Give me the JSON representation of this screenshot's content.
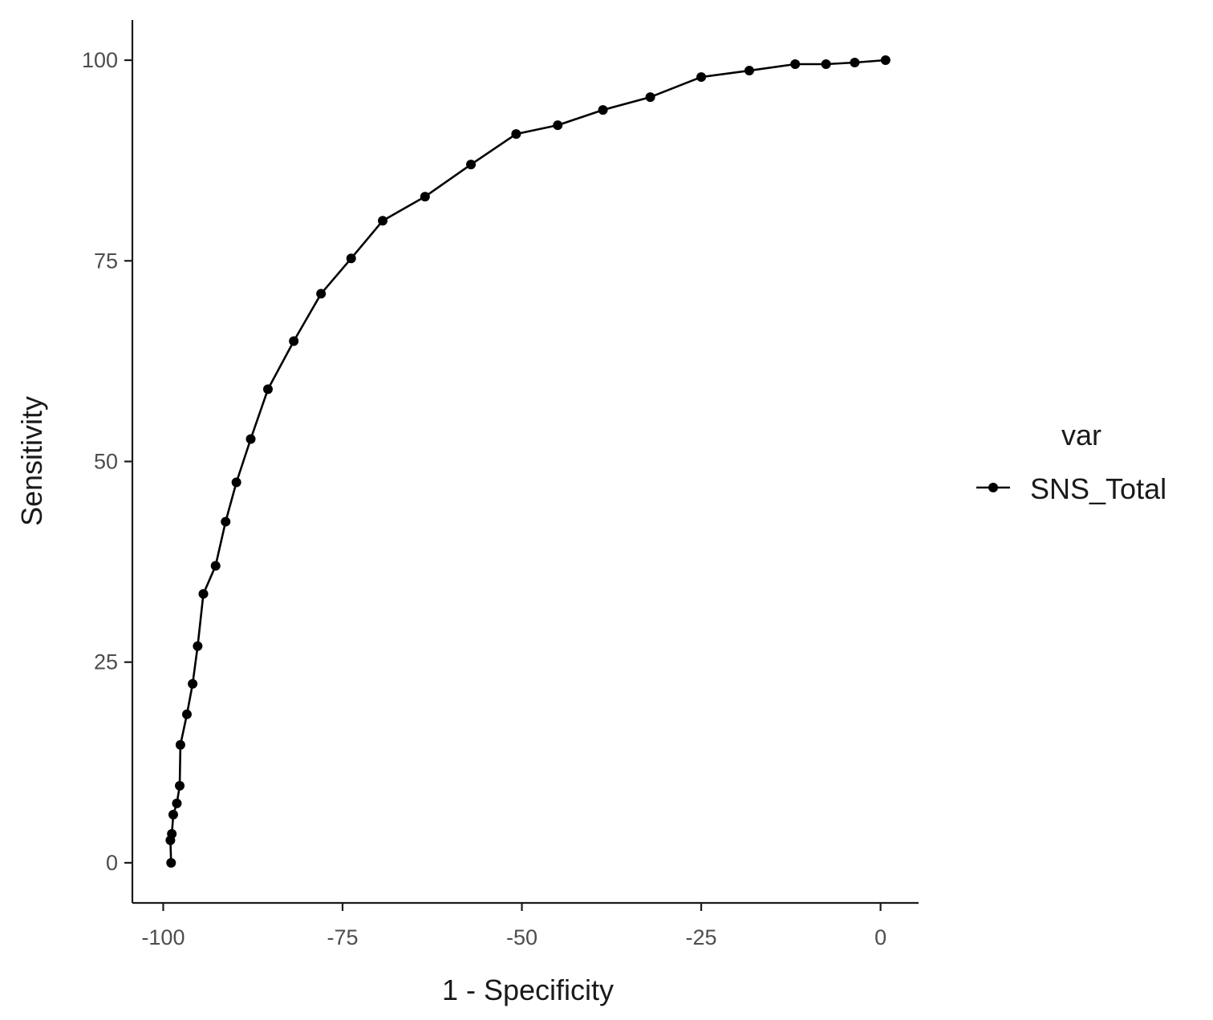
{
  "chart_data": {
    "type": "line",
    "title": "",
    "xlabel": "1 - Specificity",
    "ylabel": "Sensitivity",
    "xlim": [
      -104.3,
      5.3
    ],
    "ylim": [
      -5,
      105
    ],
    "x_ticks": [
      -100,
      -75,
      -50,
      -25,
      0
    ],
    "y_ticks": [
      0,
      25,
      50,
      75,
      100
    ],
    "x_tick_labels": [
      "-100",
      "-75",
      "-50",
      "-25",
      "0"
    ],
    "y_tick_labels": [
      "0",
      "25",
      "50",
      "75",
      "100"
    ],
    "grid": false,
    "legend": {
      "title": "var",
      "placement": "right",
      "entries": [
        "SNS_Total"
      ]
    },
    "series": [
      {
        "name": "SNS_Total",
        "color": "#000000",
        "marker": "circle",
        "points": [
          {
            "x": -98.9,
            "y": 0.0
          },
          {
            "x": -99.0,
            "y": 2.8
          },
          {
            "x": -98.8,
            "y": 3.6
          },
          {
            "x": -98.6,
            "y": 6.0
          },
          {
            "x": -98.1,
            "y": 7.4
          },
          {
            "x": -97.7,
            "y": 9.6
          },
          {
            "x": -97.6,
            "y": 14.7
          },
          {
            "x": -96.7,
            "y": 18.5
          },
          {
            "x": -95.9,
            "y": 22.3
          },
          {
            "x": -95.2,
            "y": 27.0
          },
          {
            "x": -94.4,
            "y": 33.5
          },
          {
            "x": -92.7,
            "y": 37.0
          },
          {
            "x": -91.3,
            "y": 42.5
          },
          {
            "x": -89.8,
            "y": 47.4
          },
          {
            "x": -87.8,
            "y": 52.8
          },
          {
            "x": -85.4,
            "y": 59.0
          },
          {
            "x": -81.8,
            "y": 65.0
          },
          {
            "x": -78.0,
            "y": 70.9
          },
          {
            "x": -73.8,
            "y": 75.3
          },
          {
            "x": -69.4,
            "y": 80.0
          },
          {
            "x": -63.5,
            "y": 83.0
          },
          {
            "x": -57.1,
            "y": 87.0
          },
          {
            "x": -50.8,
            "y": 90.8
          },
          {
            "x": -45.0,
            "y": 91.9
          },
          {
            "x": -38.7,
            "y": 93.8
          },
          {
            "x": -32.1,
            "y": 95.4
          },
          {
            "x": -25.0,
            "y": 97.9
          },
          {
            "x": -18.3,
            "y": 98.7
          },
          {
            "x": -11.9,
            "y": 99.5
          },
          {
            "x": -7.6,
            "y": 99.5
          },
          {
            "x": -3.6,
            "y": 99.7
          },
          {
            "x": 0.7,
            "y": 100.0
          }
        ]
      }
    ]
  }
}
